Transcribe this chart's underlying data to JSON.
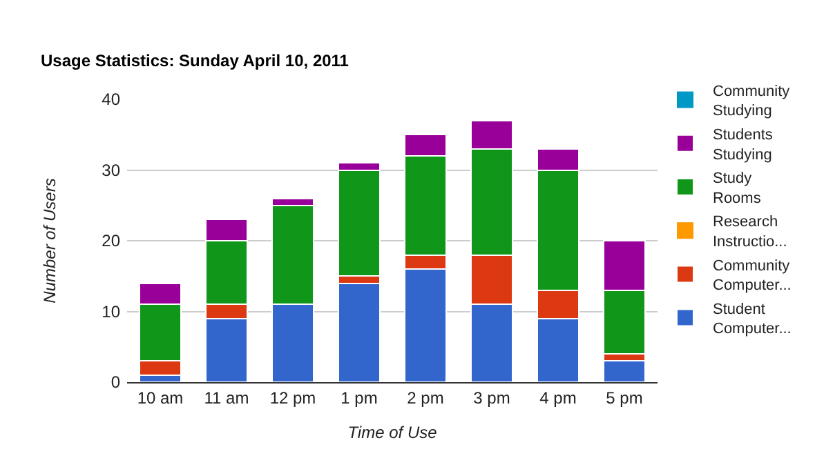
{
  "chart_data": {
    "type": "bar",
    "title": "Usage Statistics: Sunday April 10, 2011",
    "xlabel": "Time of Use",
    "ylabel": "Number of Users",
    "categories": [
      "10 am",
      "11 am",
      "12 pm",
      "1 pm",
      "2 pm",
      "3 pm",
      "4 pm",
      "5 pm"
    ],
    "stacked": true,
    "series": [
      {
        "name": "Student Computer...",
        "color": "#3366cc",
        "values": [
          1,
          9,
          11,
          14,
          16,
          11,
          9,
          3
        ]
      },
      {
        "name": "Community Computer...",
        "color": "#dc3912",
        "values": [
          2,
          2,
          0,
          1,
          2,
          7,
          4,
          1
        ]
      },
      {
        "name": "Research Instructio...",
        "color": "#ff9900",
        "values": [
          0,
          0,
          0,
          0,
          0,
          0,
          0,
          0
        ]
      },
      {
        "name": "Study Rooms",
        "color": "#109618",
        "values": [
          8,
          9,
          14,
          15,
          14,
          15,
          17,
          9
        ]
      },
      {
        "name": "Students Studying",
        "color": "#990099",
        "values": [
          3,
          3,
          1,
          1,
          3,
          4,
          3,
          7
        ]
      },
      {
        "name": "Community Studying",
        "color": "#0099c6",
        "values": [
          0,
          0,
          0,
          0,
          0,
          0,
          0,
          0
        ]
      }
    ],
    "ylim": [
      0,
      40
    ],
    "yticks": [
      0,
      10,
      20,
      30,
      40
    ],
    "grid": "y",
    "legend": "right"
  }
}
